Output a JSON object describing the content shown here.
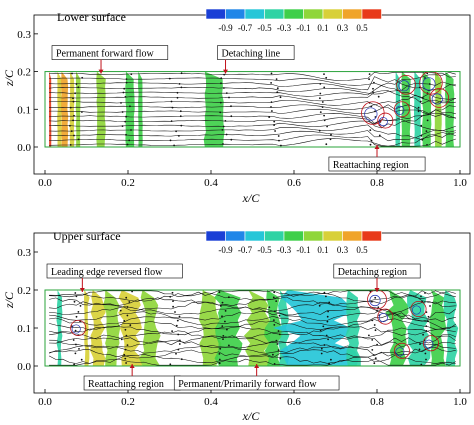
{
  "panels": [
    {
      "id": "lower",
      "label": "Lower surface",
      "x_axis_label": "x/C",
      "y_axis_label": "z/C",
      "annotations": [
        {
          "id": "permanent-forward-flow",
          "text": "Permanent forward flow",
          "x": 0.135,
          "z": 0.2
        },
        {
          "id": "detaching-line",
          "text": "Detaching line",
          "x": 0.435,
          "z": 0.2
        },
        {
          "id": "reattaching-region",
          "text": "Reattaching region",
          "x": 0.8,
          "z": 0.0
        }
      ]
    },
    {
      "id": "upper",
      "label": "Upper surface",
      "x_axis_label": "x/C",
      "y_axis_label": "z/C",
      "annotations": [
        {
          "id": "leading-edge-reversed-flow",
          "text": "Leading edge reversed flow",
          "x": 0.09,
          "z": 0.2
        },
        {
          "id": "detaching-region",
          "text": "Detaching region",
          "x": 0.8,
          "z": 0.2
        },
        {
          "id": "reattaching-region",
          "text": "Reattaching region",
          "x": 0.21,
          "z": 0.0
        },
        {
          "id": "permanent-primarily-forward-flow",
          "text": "Permanent/Primarily forward flow",
          "x": 0.51,
          "z": 0.0
        }
      ]
    }
  ],
  "colorbar": {
    "ticks": [
      "-0.9",
      "-0.7",
      "-0.5",
      "-0.3",
      "-0.1",
      "0.1",
      "0.3",
      "0.5"
    ],
    "colors": [
      "#1a3fd6",
      "#1f86e8",
      "#25c6d8",
      "#2fd3a4",
      "#3fcf4a",
      "#8fd63a",
      "#d8d038",
      "#f0a42a",
      "#e83a1a"
    ]
  },
  "chart_data": [
    {
      "type": "heatmap",
      "panel": "Lower surface",
      "xlabel": "x/C",
      "ylabel": "z/C",
      "xlim": [
        0.0,
        1.0
      ],
      "ylim": [
        0.0,
        0.2
      ],
      "xticks": [
        "0.0",
        "0.2",
        "0.4",
        "0.6",
        "0.8",
        "1.0"
      ],
      "yticks": [
        "0.0",
        "0.1",
        "0.2",
        "0.3"
      ],
      "bands": [
        {
          "x0": 0.01,
          "x1": 0.015,
          "level": 0.5
        },
        {
          "x0": 0.03,
          "x1": 0.04,
          "level": 0.1
        },
        {
          "x0": 0.04,
          "x1": 0.055,
          "level": 0.3
        },
        {
          "x0": 0.06,
          "x1": 0.07,
          "level": 0.1
        },
        {
          "x0": 0.075,
          "x1": 0.085,
          "level": -0.1
        },
        {
          "x0": 0.125,
          "x1": 0.145,
          "level": -0.1
        },
        {
          "x0": 0.195,
          "x1": 0.215,
          "level": -0.3
        },
        {
          "x0": 0.225,
          "x1": 0.235,
          "level": -0.3
        },
        {
          "x0": 0.385,
          "x1": 0.43,
          "level": -0.3
        },
        {
          "x0": 0.845,
          "x1": 0.855,
          "level": -0.5
        },
        {
          "x0": 0.86,
          "x1": 0.88,
          "level": -0.3
        },
        {
          "x0": 0.89,
          "x1": 0.905,
          "level": -0.5
        },
        {
          "x0": 0.91,
          "x1": 0.93,
          "level": -0.3
        },
        {
          "x0": 0.94,
          "x1": 0.955,
          "level": -0.1
        },
        {
          "x0": 0.965,
          "x1": 0.985,
          "level": -0.3
        }
      ],
      "vortices": [
        {
          "x": 0.79,
          "z": 0.09,
          "r": 0.03
        },
        {
          "x": 0.87,
          "z": 0.165,
          "r": 0.025
        },
        {
          "x": 0.93,
          "z": 0.17,
          "r": 0.03
        },
        {
          "x": 0.95,
          "z": 0.13,
          "r": 0.025
        },
        {
          "x": 0.86,
          "z": 0.1,
          "r": 0.02
        },
        {
          "x": 0.82,
          "z": 0.07,
          "r": 0.02
        }
      ]
    },
    {
      "type": "heatmap",
      "panel": "Upper surface",
      "xlabel": "x/C",
      "ylabel": "z/C",
      "xlim": [
        0.0,
        1.0
      ],
      "ylim": [
        0.0,
        0.2
      ],
      "xticks": [
        "0.0",
        "0.2",
        "0.4",
        "0.6",
        "0.8",
        "1.0"
      ],
      "yticks": [
        "0.0",
        "0.1",
        "0.2",
        "0.3"
      ],
      "bands": [
        {
          "x0": 0.03,
          "x1": 0.04,
          "level": -0.5
        },
        {
          "x0": 0.095,
          "x1": 0.105,
          "level": 0.1
        },
        {
          "x0": 0.115,
          "x1": 0.14,
          "level": 0.1
        },
        {
          "x0": 0.145,
          "x1": 0.175,
          "level": -0.1
        },
        {
          "x0": 0.185,
          "x1": 0.225,
          "level": 0.1
        },
        {
          "x0": 0.235,
          "x1": 0.27,
          "level": -0.1
        },
        {
          "x0": 0.38,
          "x1": 0.42,
          "level": -0.1
        },
        {
          "x0": 0.42,
          "x1": 0.47,
          "level": -0.3
        },
        {
          "x0": 0.49,
          "x1": 0.535,
          "level": -0.1
        },
        {
          "x0": 0.535,
          "x1": 0.565,
          "level": -0.3
        },
        {
          "x0": 0.565,
          "x1": 0.585,
          "level": -0.5
        },
        {
          "x0": 0.585,
          "x1": 0.73,
          "level": -0.7
        },
        {
          "x0": 0.73,
          "x1": 0.755,
          "level": -0.5
        },
        {
          "x0": 0.83,
          "x1": 0.87,
          "level": -0.3
        },
        {
          "x0": 0.88,
          "x1": 0.92,
          "level": -0.5
        },
        {
          "x0": 0.93,
          "x1": 0.96,
          "level": -0.3
        },
        {
          "x0": 0.965,
          "x1": 0.99,
          "level": -0.5
        }
      ],
      "vortices": [
        {
          "x": 0.08,
          "z": 0.1,
          "r": 0.02
        },
        {
          "x": 0.8,
          "z": 0.175,
          "r": 0.025
        },
        {
          "x": 0.82,
          "z": 0.13,
          "r": 0.02
        },
        {
          "x": 0.86,
          "z": 0.04,
          "r": 0.02
        },
        {
          "x": 0.9,
          "z": 0.15,
          "r": 0.02
        },
        {
          "x": 0.93,
          "z": 0.06,
          "r": 0.02
        }
      ]
    }
  ]
}
